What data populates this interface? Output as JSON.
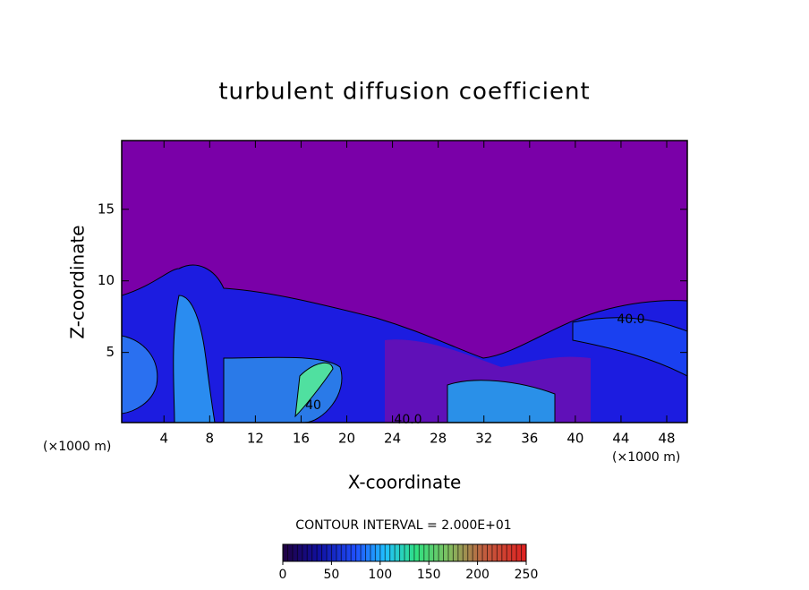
{
  "chart_data": {
    "type": "contour",
    "title": "turbulent diffusion coefficient",
    "x_label": "X-coordinate",
    "y_label": "Z-coordinate",
    "x_unit": "(×1000 m)",
    "y_unit": "(×1000 m)",
    "xlim": [
      0.3,
      49.8
    ],
    "xticks": [
      4,
      8,
      12,
      16,
      20,
      24,
      28,
      32,
      36,
      40,
      44,
      48
    ],
    "ylim": [
      0.1,
      19.8
    ],
    "yticks": [
      5,
      10,
      15
    ],
    "contour_interval_text": "CONTOUR INTERVAL = 2.000E+01",
    "contour_labels": [
      "40.0",
      "40.0",
      "40"
    ],
    "colorbar": {
      "lim": [
        0,
        250
      ],
      "ticks": [
        0,
        50,
        100,
        150,
        200,
        250
      ]
    }
  }
}
